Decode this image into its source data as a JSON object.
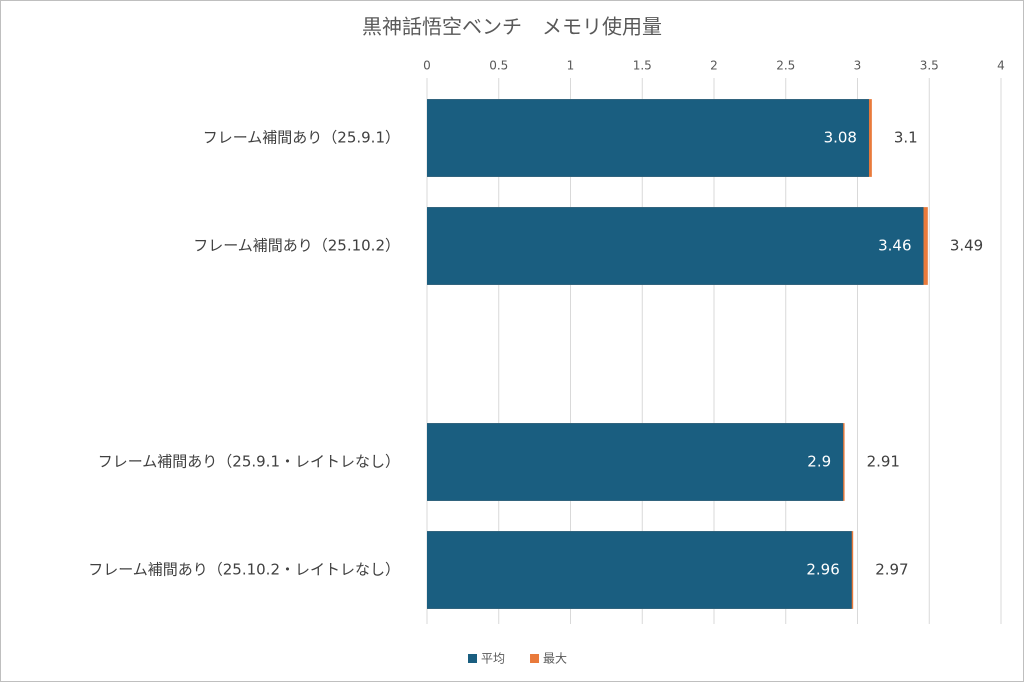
{
  "chart_data": {
    "type": "bar",
    "orientation": "horizontal",
    "overlap": true,
    "title": "黒神話悟空ベンチ　メモリ使用量",
    "categories": [
      "フレーム補間あり（25.9.1）",
      "フレーム補間あり（25.10.2）",
      null,
      "フレーム補間あり（25.9.1・レイトレなし）",
      "フレーム補間あり（25.10.2・レイトレなし）"
    ],
    "series": [
      {
        "name": "最大",
        "color": "#e97a3b",
        "values": [
          3.1,
          3.49,
          null,
          2.91,
          2.97
        ]
      },
      {
        "name": "平均",
        "color": "#1a5e80",
        "values": [
          3.08,
          3.46,
          null,
          2.9,
          2.96
        ]
      }
    ],
    "xlim": [
      0,
      4
    ],
    "xticks": [
      0,
      0.5,
      1,
      1.5,
      2,
      2.5,
      3,
      3.5,
      4
    ],
    "grid": true,
    "legend": "bottom"
  }
}
